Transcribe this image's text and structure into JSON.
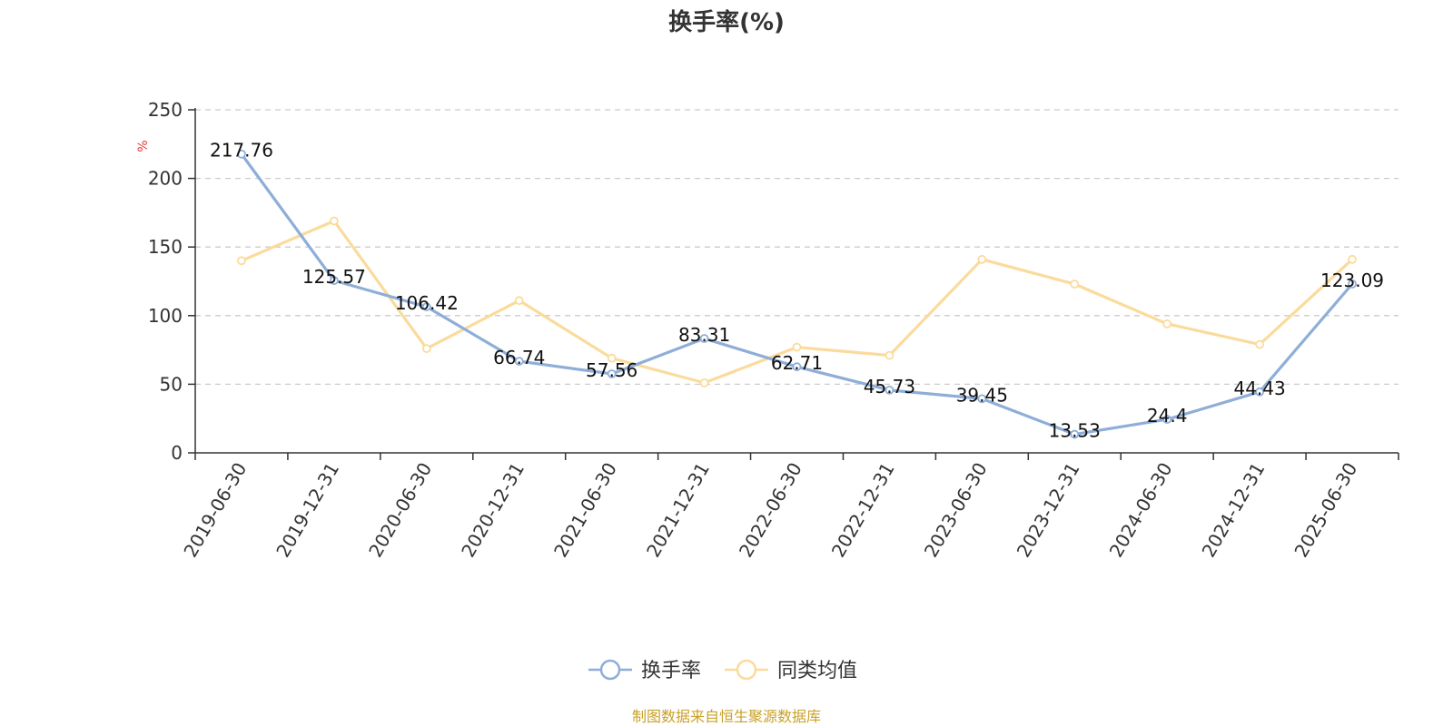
{
  "chart_data": {
    "type": "line",
    "title": "换手率(%)",
    "ylabel": "%",
    "ylim": [
      0,
      250
    ],
    "yticks": [
      0,
      50,
      100,
      150,
      200,
      250
    ],
    "grid": true,
    "legend_position": "bottom",
    "categories": [
      "2019-06-30",
      "2019-12-31",
      "2020-06-30",
      "2020-12-31",
      "2021-06-30",
      "2021-12-31",
      "2022-06-30",
      "2022-12-31",
      "2023-06-30",
      "2023-12-31",
      "2024-06-30",
      "2024-12-31",
      "2025-06-30"
    ],
    "series": [
      {
        "name": "换手率",
        "color": "#8eaed8",
        "values": [
          217.76,
          125.57,
          106.42,
          66.74,
          57.56,
          83.31,
          62.71,
          45.73,
          39.45,
          13.53,
          24.4,
          44.43,
          123.09
        ],
        "labels": [
          "217.76",
          "125.57",
          "106.42",
          "66.74",
          "57.56",
          "83.31",
          "62.71",
          "45.73",
          "39.45",
          "13.53",
          "24.4",
          "44.43",
          "123.09"
        ]
      },
      {
        "name": "同类均值",
        "color": "#fbdb9c",
        "values": [
          140,
          169,
          76,
          111,
          69,
          51,
          77,
          71,
          141,
          123,
          94,
          79,
          141
        ]
      }
    ],
    "source": "制图数据来自恒生聚源数据库"
  }
}
